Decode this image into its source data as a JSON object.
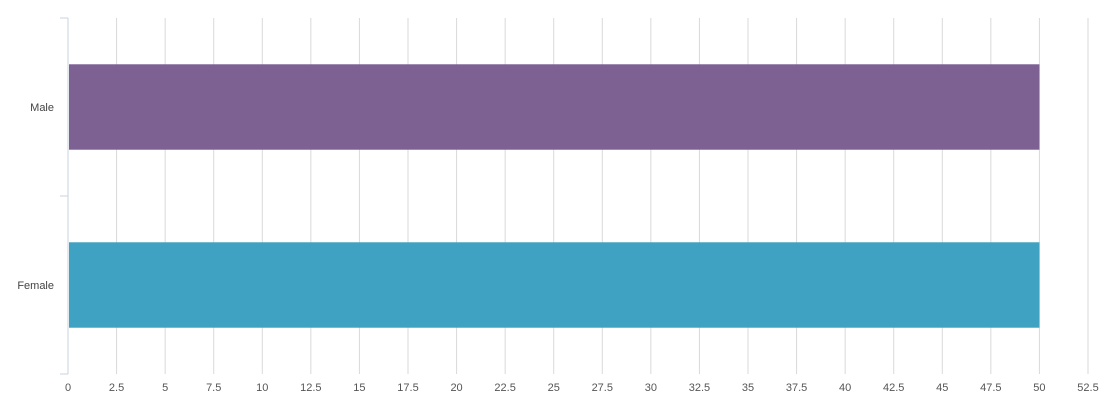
{
  "chart_data": {
    "type": "bar",
    "orientation": "horizontal",
    "categories": [
      "Male",
      "Female"
    ],
    "values": [
      50,
      50
    ],
    "colors": [
      "#7d6193",
      "#40a2c2"
    ],
    "title": "",
    "xlabel": "",
    "ylabel": "",
    "xlim": [
      0,
      52.5
    ],
    "x_ticks": [
      "0",
      "2.5",
      "5",
      "7.5",
      "10",
      "12.5",
      "15",
      "17.5",
      "20",
      "22.5",
      "25",
      "27.5",
      "30",
      "32.5",
      "35",
      "37.5",
      "40",
      "42.5",
      "45",
      "47.5",
      "50",
      "52.5"
    ],
    "grid": true,
    "legend": "none"
  }
}
